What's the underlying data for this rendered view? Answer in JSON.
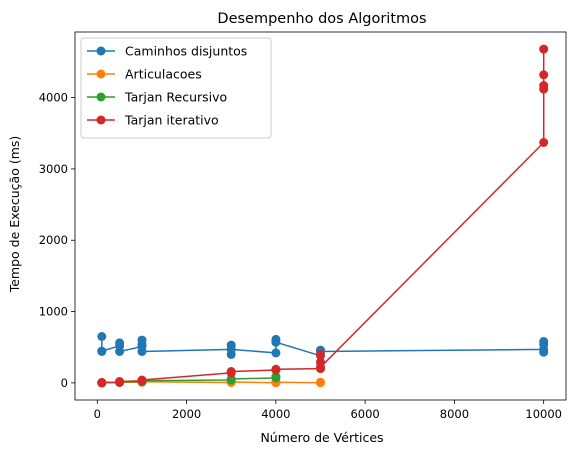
{
  "chart_data": {
    "type": "line",
    "title": "Desempenho dos Algoritmos",
    "xlabel": "Número de Vértices",
    "ylabel": "Tempo de Execução (ms)",
    "xlim": [
      -500,
      10500
    ],
    "ylim": [
      -240,
      4920
    ],
    "xticks": [
      0,
      2000,
      4000,
      6000,
      8000,
      10000
    ],
    "yticks": [
      0,
      1000,
      2000,
      3000,
      4000
    ],
    "legend_position": "top-left",
    "grid": false,
    "series": [
      {
        "name": "Caminhos disjuntos",
        "color": "#1f77b4",
        "x": [
          100,
          100,
          100,
          500,
          500,
          500,
          1000,
          1000,
          1000,
          1000,
          3000,
          3000,
          3000,
          3000,
          4000,
          4000,
          4000,
          5000,
          5000,
          5000,
          10000,
          10000,
          10000,
          10000
        ],
        "y": [
          440,
          650,
          445,
          520,
          560,
          440,
          510,
          600,
          540,
          440,
          470,
          530,
          400,
          470,
          420,
          610,
          570,
          380,
          460,
          440,
          470,
          580,
          430,
          540
        ]
      },
      {
        "name": "Articulacoes",
        "color": "#ff7f0e",
        "x": [
          100,
          100,
          500,
          500,
          1000,
          1000,
          3000,
          3000,
          4000,
          4000,
          5000,
          5000
        ],
        "y": [
          0,
          3,
          5,
          10,
          8,
          15,
          5,
          12,
          3,
          10,
          2,
          8
        ]
      },
      {
        "name": "Tarjan Recursivo",
        "color": "#2ca02c",
        "x": [
          100,
          100,
          500,
          500,
          1000,
          1000,
          3000,
          3000,
          4000,
          4000
        ],
        "y": [
          0,
          5,
          5,
          15,
          15,
          30,
          40,
          55,
          70,
          90
        ]
      },
      {
        "name": "Tarjan iterativo",
        "color": "#d62728",
        "x": [
          100,
          100,
          500,
          500,
          1000,
          1000,
          3000,
          3000,
          4000,
          4000,
          5000,
          5000,
          5000,
          5000,
          10000,
          10000,
          10000,
          10000,
          10000
        ],
        "y": [
          0,
          5,
          10,
          20,
          30,
          40,
          140,
          160,
          180,
          190,
          200,
          290,
          400,
          220,
          3370,
          4120,
          4320,
          4680,
          4170
        ]
      }
    ]
  }
}
